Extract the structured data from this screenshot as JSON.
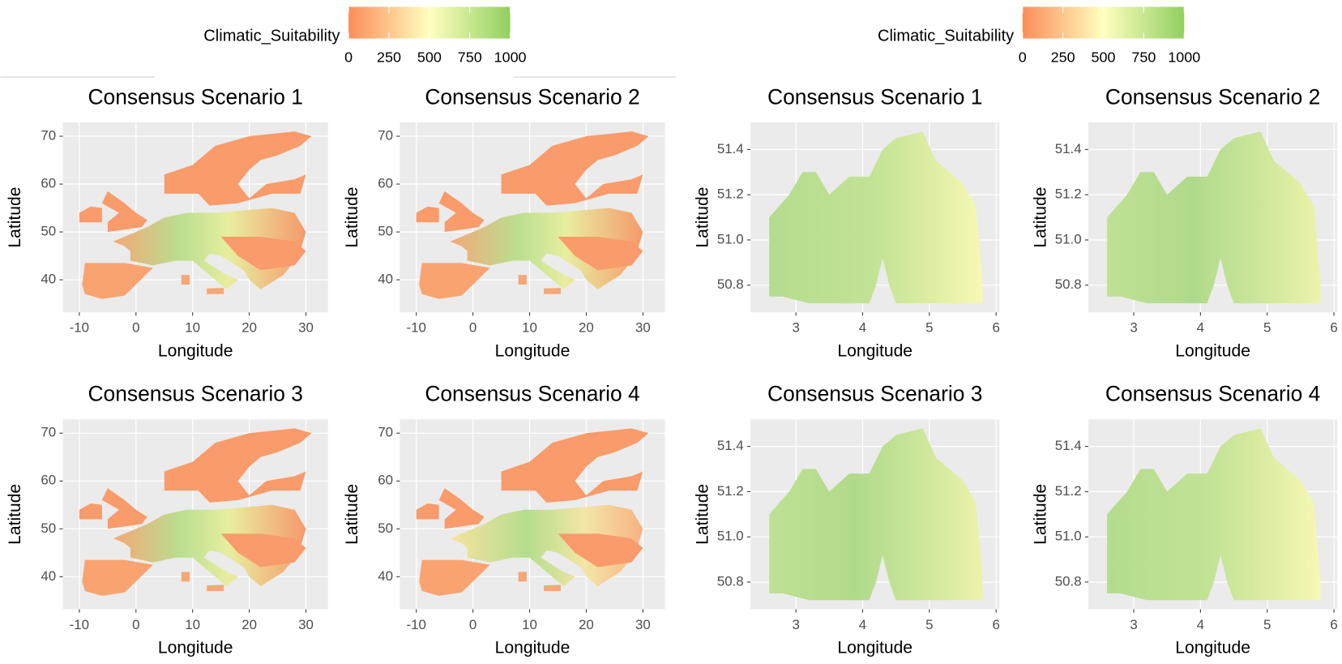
{
  "legends": [
    {
      "title": "Climatic_Suitability",
      "lim": [
        0,
        1000
      ],
      "ticks": [
        0,
        250,
        500,
        750,
        1000
      ],
      "colors": [
        "#fc8d59",
        "#ffffbf",
        "#91cf60"
      ]
    },
    {
      "title": "Climatic_Suitability",
      "lim": [
        0,
        1000
      ],
      "ticks": [
        0,
        250,
        500,
        750,
        1000
      ],
      "colors": [
        "#fc8d59",
        "#ffffbf",
        "#91cf60"
      ]
    }
  ],
  "chart_data": [
    {
      "type": "map",
      "title": "Consensus Scenario 1",
      "xlabel": "Longitude",
      "ylabel": "Latitude",
      "xlim": [
        -12.9,
        33.9
      ],
      "ylim": [
        33.2,
        72.9
      ],
      "xticks": [
        -10,
        0,
        10,
        20,
        30
      ],
      "yticks": [
        40,
        50,
        60,
        70
      ],
      "grid": true
    },
    {
      "type": "map",
      "title": "Consensus Scenario 2",
      "xlabel": "Longitude",
      "ylabel": "Latitude",
      "xlim": [
        -12.9,
        33.9
      ],
      "ylim": [
        33.2,
        72.9
      ],
      "xticks": [
        -10,
        0,
        10,
        20,
        30
      ],
      "yticks": [
        40,
        50,
        60,
        70
      ],
      "grid": true
    },
    {
      "type": "map",
      "title": "Consensus Scenario 3",
      "xlabel": "Longitude",
      "ylabel": "Latitude",
      "xlim": [
        -12.9,
        33.9
      ],
      "ylim": [
        33.2,
        72.9
      ],
      "xticks": [
        -10,
        0,
        10,
        20,
        30
      ],
      "yticks": [
        40,
        50,
        60,
        70
      ],
      "grid": true
    },
    {
      "type": "map",
      "title": "Consensus Scenario 4",
      "xlabel": "Longitude",
      "ylabel": "Latitude",
      "xlim": [
        -12.9,
        33.9
      ],
      "ylim": [
        33.2,
        72.9
      ],
      "xticks": [
        -10,
        0,
        10,
        20,
        30
      ],
      "yticks": [
        40,
        50,
        60,
        70
      ],
      "grid": true
    },
    {
      "type": "map",
      "title": "Consensus Scenario 1",
      "xlabel": "Longitude",
      "ylabel": "Latitude",
      "xlim": [
        2.32,
        6.05
      ],
      "ylim": [
        50.68,
        51.52
      ],
      "xticks": [
        3,
        4,
        5,
        6
      ],
      "yticks": [
        {
          "value": 50.8,
          "label": "50.8"
        },
        {
          "value": 51,
          "label": "51.0"
        },
        {
          "value": 51.2,
          "label": "51.2"
        },
        {
          "value": 51.4,
          "label": "51.4"
        }
      ],
      "grid": true
    },
    {
      "type": "map",
      "title": "Consensus Scenario 2",
      "xlabel": "Longitude",
      "ylabel": "Latitude",
      "xlim": [
        2.32,
        6.05
      ],
      "ylim": [
        50.68,
        51.52
      ],
      "xticks": [
        3,
        4,
        5,
        6
      ],
      "yticks": [
        {
          "value": 50.8,
          "label": "50.8"
        },
        {
          "value": 51,
          "label": "51.0"
        },
        {
          "value": 51.2,
          "label": "51.2"
        },
        {
          "value": 51.4,
          "label": "51.4"
        }
      ],
      "grid": true
    },
    {
      "type": "map",
      "title": "Consensus Scenario 3",
      "xlabel": "Longitude",
      "ylabel": "Latitude",
      "xlim": [
        2.32,
        6.05
      ],
      "ylim": [
        50.68,
        51.52
      ],
      "xticks": [
        3,
        4,
        5,
        6
      ],
      "yticks": [
        {
          "value": 50.8,
          "label": "50.8"
        },
        {
          "value": 51,
          "label": "51.0"
        },
        {
          "value": 51.2,
          "label": "51.2"
        },
        {
          "value": 51.4,
          "label": "51.4"
        }
      ],
      "grid": true
    },
    {
      "type": "map",
      "title": "Consensus Scenario 4",
      "xlabel": "Longitude",
      "ylabel": "Latitude",
      "xlim": [
        2.32,
        6.05
      ],
      "ylim": [
        50.68,
        51.52
      ],
      "xticks": [
        3,
        4,
        5,
        6
      ],
      "yticks": [
        {
          "value": 50.8,
          "label": "50.8"
        },
        {
          "value": 51,
          "label": "51.0"
        },
        {
          "value": 51.2,
          "label": "51.2"
        },
        {
          "value": 51.4,
          "label": "51.4"
        }
      ],
      "grid": true
    }
  ]
}
